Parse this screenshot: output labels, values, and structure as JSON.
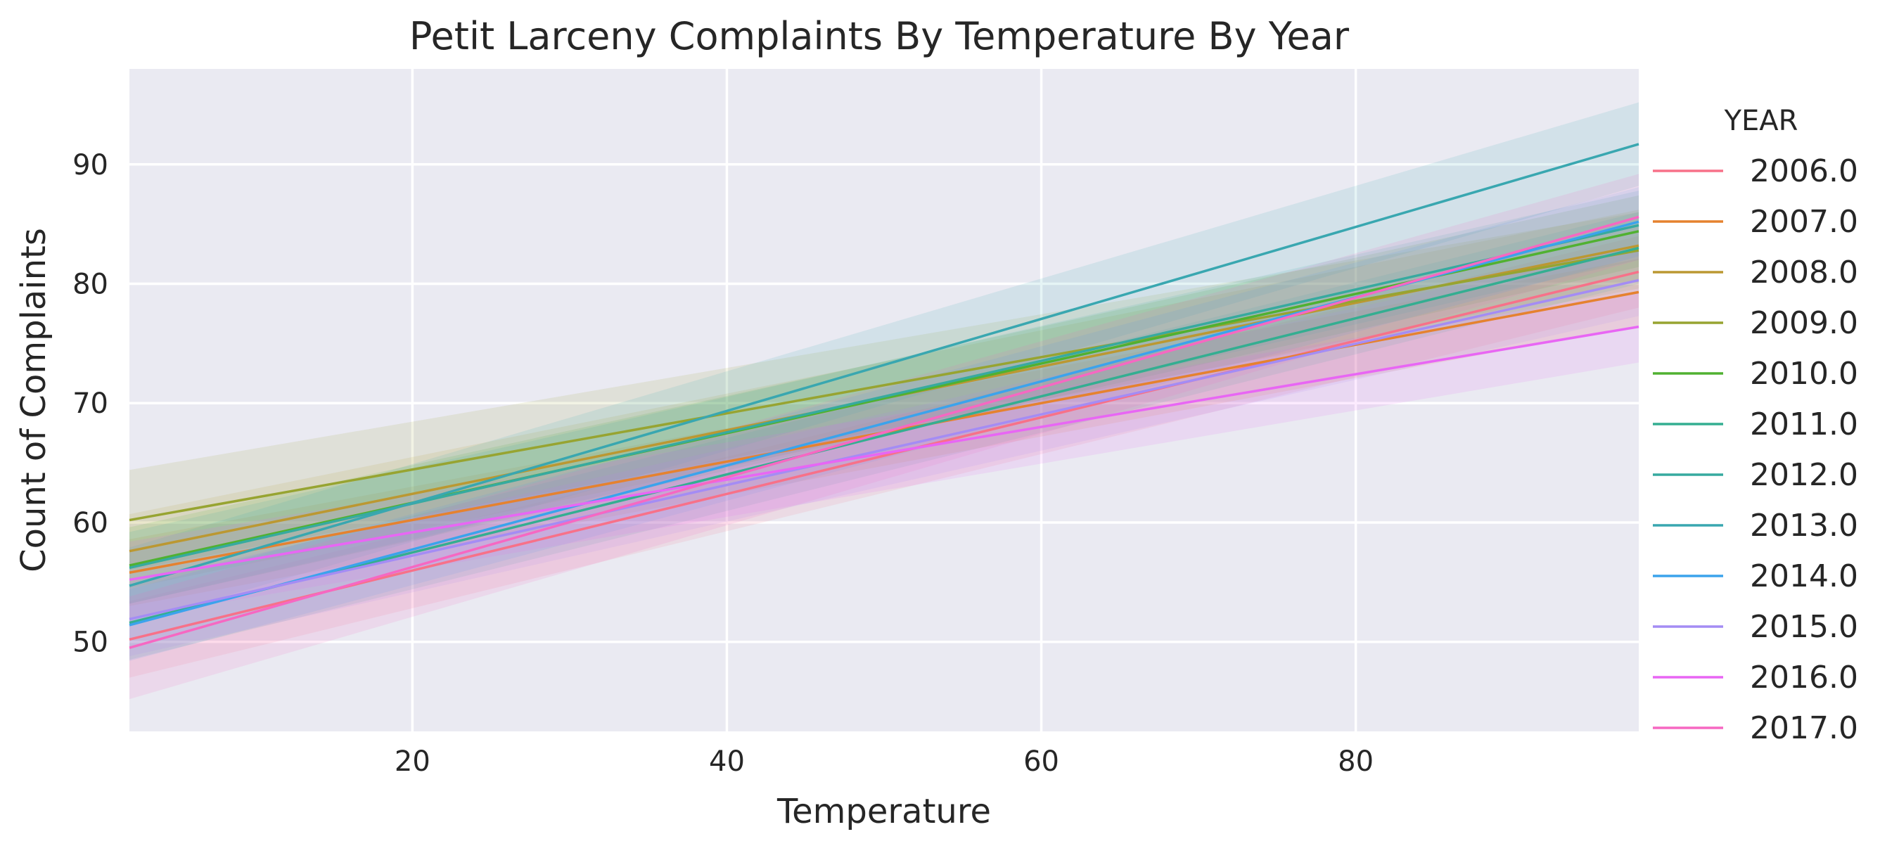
{
  "chart_data": {
    "type": "line",
    "title": "Petit Larceny Complaints By Temperature By Year",
    "xlabel": "Temperature",
    "ylabel": "Count of Complaints",
    "xlim": [
      2,
      98
    ],
    "ylim": [
      42.5,
      98
    ],
    "xticks": [
      20,
      40,
      60,
      80
    ],
    "yticks": [
      50,
      60,
      70,
      80,
      90
    ],
    "grid": true,
    "legend": {
      "title": "YEAR",
      "placement": "right"
    },
    "series": [
      {
        "name": "2006.0",
        "color": "#f77189",
        "x": [
          2,
          98
        ],
        "y": [
          50.2,
          81.0
        ],
        "ci": [
          [
            47.0,
            53.4
          ],
          [
            78.0,
            84.0
          ]
        ]
      },
      {
        "name": "2007.0",
        "color": "#e5822f",
        "x": [
          2,
          98
        ],
        "y": [
          55.8,
          79.3
        ],
        "ci": [
          [
            53.0,
            58.6
          ],
          [
            76.5,
            82.1
          ]
        ]
      },
      {
        "name": "2008.0",
        "color": "#bb9832",
        "x": [
          2,
          98
        ],
        "y": [
          57.6,
          83.2
        ],
        "ci": [
          [
            54.5,
            60.7
          ],
          [
            80.2,
            86.2
          ]
        ]
      },
      {
        "name": "2009.0",
        "color": "#97a431",
        "x": [
          2,
          98
        ],
        "y": [
          60.2,
          82.8
        ],
        "ci": [
          [
            56.0,
            64.4
          ],
          [
            79.6,
            86.0
          ]
        ]
      },
      {
        "name": "2010.0",
        "color": "#50b131",
        "x": [
          2,
          98
        ],
        "y": [
          56.4,
          84.4
        ],
        "ci": [
          [
            53.2,
            59.6
          ],
          [
            81.4,
            87.4
          ]
        ]
      },
      {
        "name": "2011.0",
        "color": "#34ae91",
        "x": [
          2,
          98
        ],
        "y": [
          51.6,
          83.0
        ],
        "ci": [
          [
            48.5,
            54.7
          ],
          [
            80.0,
            86.0
          ]
        ]
      },
      {
        "name": "2012.0",
        "color": "#37aa9f",
        "x": [
          2,
          98
        ],
        "y": [
          56.2,
          84.9
        ],
        "ci": [
          [
            53.2,
            59.2
          ],
          [
            82.0,
            87.8
          ]
        ]
      },
      {
        "name": "2013.0",
        "color": "#39a7b0",
        "x": [
          2,
          98
        ],
        "y": [
          54.7,
          91.7
        ],
        "ci": [
          [
            51.5,
            57.9
          ],
          [
            88.2,
            95.2
          ]
        ]
      },
      {
        "name": "2014.0",
        "color": "#3ba3ec",
        "x": [
          2,
          98
        ],
        "y": [
          51.4,
          85.2
        ],
        "ci": [
          [
            48.4,
            54.4
          ],
          [
            82.3,
            88.1
          ]
        ]
      },
      {
        "name": "2015.0",
        "color": "#a48cf4",
        "x": [
          2,
          98
        ],
        "y": [
          51.9,
          80.3
        ],
        "ci": [
          [
            48.8,
            55.0
          ],
          [
            77.3,
            83.3
          ]
        ]
      },
      {
        "name": "2016.0",
        "color": "#e866f4",
        "x": [
          2,
          98
        ],
        "y": [
          55.2,
          76.4
        ],
        "ci": [
          [
            52.0,
            58.4
          ],
          [
            73.4,
            79.4
          ]
        ]
      },
      {
        "name": "2017.0",
        "color": "#f668c2",
        "x": [
          2,
          98
        ],
        "y": [
          49.5,
          85.6
        ],
        "ci": [
          [
            45.2,
            53.8
          ],
          [
            82.0,
            89.2
          ]
        ]
      }
    ]
  }
}
